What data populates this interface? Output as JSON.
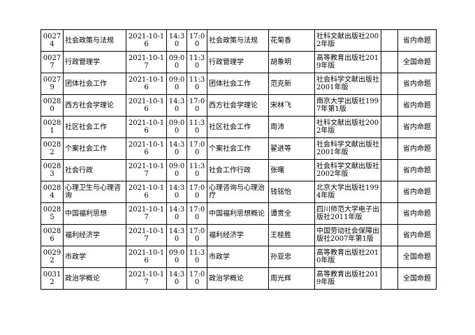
{
  "rows": [
    {
      "code": "00274",
      "course": "社会政策与法规",
      "date": "2021-10-16",
      "start": "14:30",
      "end": "17:00",
      "textbook": "社会政策与法规",
      "author": "花菊香",
      "publisher": "社科文献出版社2002年版",
      "extra": "",
      "note": "省内命题"
    },
    {
      "code": "00277",
      "course": "行政管理学",
      "date": "2021-10-17",
      "start": "09:00",
      "end": "11:30",
      "textbook": "行政管理学",
      "author": "胡象明",
      "publisher": "高等教育出版社2019年版",
      "extra": "",
      "note": "全国命题"
    },
    {
      "code": "00279",
      "course": "团体社会工作",
      "date": "2021-10-16",
      "start": "09:00",
      "end": "11:30",
      "textbook": "团体社会工作",
      "author": "范克新",
      "publisher": "社会科学文献出版社2001年版",
      "extra": "",
      "note": "省内命题"
    },
    {
      "code": "00280",
      "course": "西方社会学理论",
      "date": "2021-10-16",
      "start": "14:30",
      "end": "17:00",
      "textbook": "西方社会学理论",
      "author": "宋林飞",
      "publisher": "南京大学出版社1997年第1版",
      "extra": "",
      "note": "省内命题"
    },
    {
      "code": "00281",
      "course": "社区社会工作",
      "date": "2021-10-16",
      "start": "09:00",
      "end": "11:30",
      "textbook": "社区社会工作",
      "author": "周沛",
      "publisher": "社科文献出版社2002年版",
      "extra": "",
      "note": "省内命题"
    },
    {
      "code": "00282",
      "course": "个案社会工作",
      "date": "2021-10-16",
      "start": "14:30",
      "end": "17:00",
      "textbook": "个案社会工作",
      "author": "翟进等",
      "publisher": "社会科学文献出版社2001年版",
      "extra": "",
      "note": "省内命题"
    },
    {
      "code": "00283",
      "course": "社会行政",
      "date": "2021-10-17",
      "start": "09:00",
      "end": "11:30",
      "textbook": "社会工作行政",
      "author": "张曙",
      "publisher": "社会科学文献出版社2002年版",
      "extra": "",
      "note": "省内命题"
    },
    {
      "code": "00284",
      "course": "心理卫生与心理咨询",
      "date": "2021-10-16",
      "start": "14:30",
      "end": "17:00",
      "textbook": "心理咨询与心理治疗",
      "author": "钱铭怡",
      "publisher": "北京大学出版社1994年版",
      "extra": "",
      "note": "省内命题"
    },
    {
      "code": "00285",
      "course": "中国福利思想",
      "date": "2021-10-17",
      "start": "14:30",
      "end": "17:00",
      "textbook": "中国福利思想概论",
      "author": "谭贵全",
      "publisher": "四川师范大学电子出版社2011年版",
      "extra": "",
      "note": "省内命题"
    },
    {
      "code": "00286",
      "course": "福利经济学",
      "date": "2021-10-17",
      "start": "14:30",
      "end": "17:00",
      "textbook": "福利经济学",
      "author": "王桂胜",
      "publisher": "中国劳动社会保障出版社2007年第1版",
      "extra": "",
      "note": "省内命题"
    },
    {
      "code": "00292",
      "course": "市政学",
      "date": "2021-10-16",
      "start": "09:00",
      "end": "11:30",
      "textbook": "市政学",
      "author": "孙亚忠",
      "publisher": "高等教育出版社2010年版",
      "extra": "",
      "note": "全国命题"
    },
    {
      "code": "00312",
      "course": "政治学概论",
      "date": "2021-10-17",
      "start": "14:30",
      "end": "17:00",
      "textbook": "政治学概论",
      "author": "周光辉",
      "publisher": "高等教育出版社2019年版",
      "extra": "",
      "note": "全国命题"
    }
  ]
}
